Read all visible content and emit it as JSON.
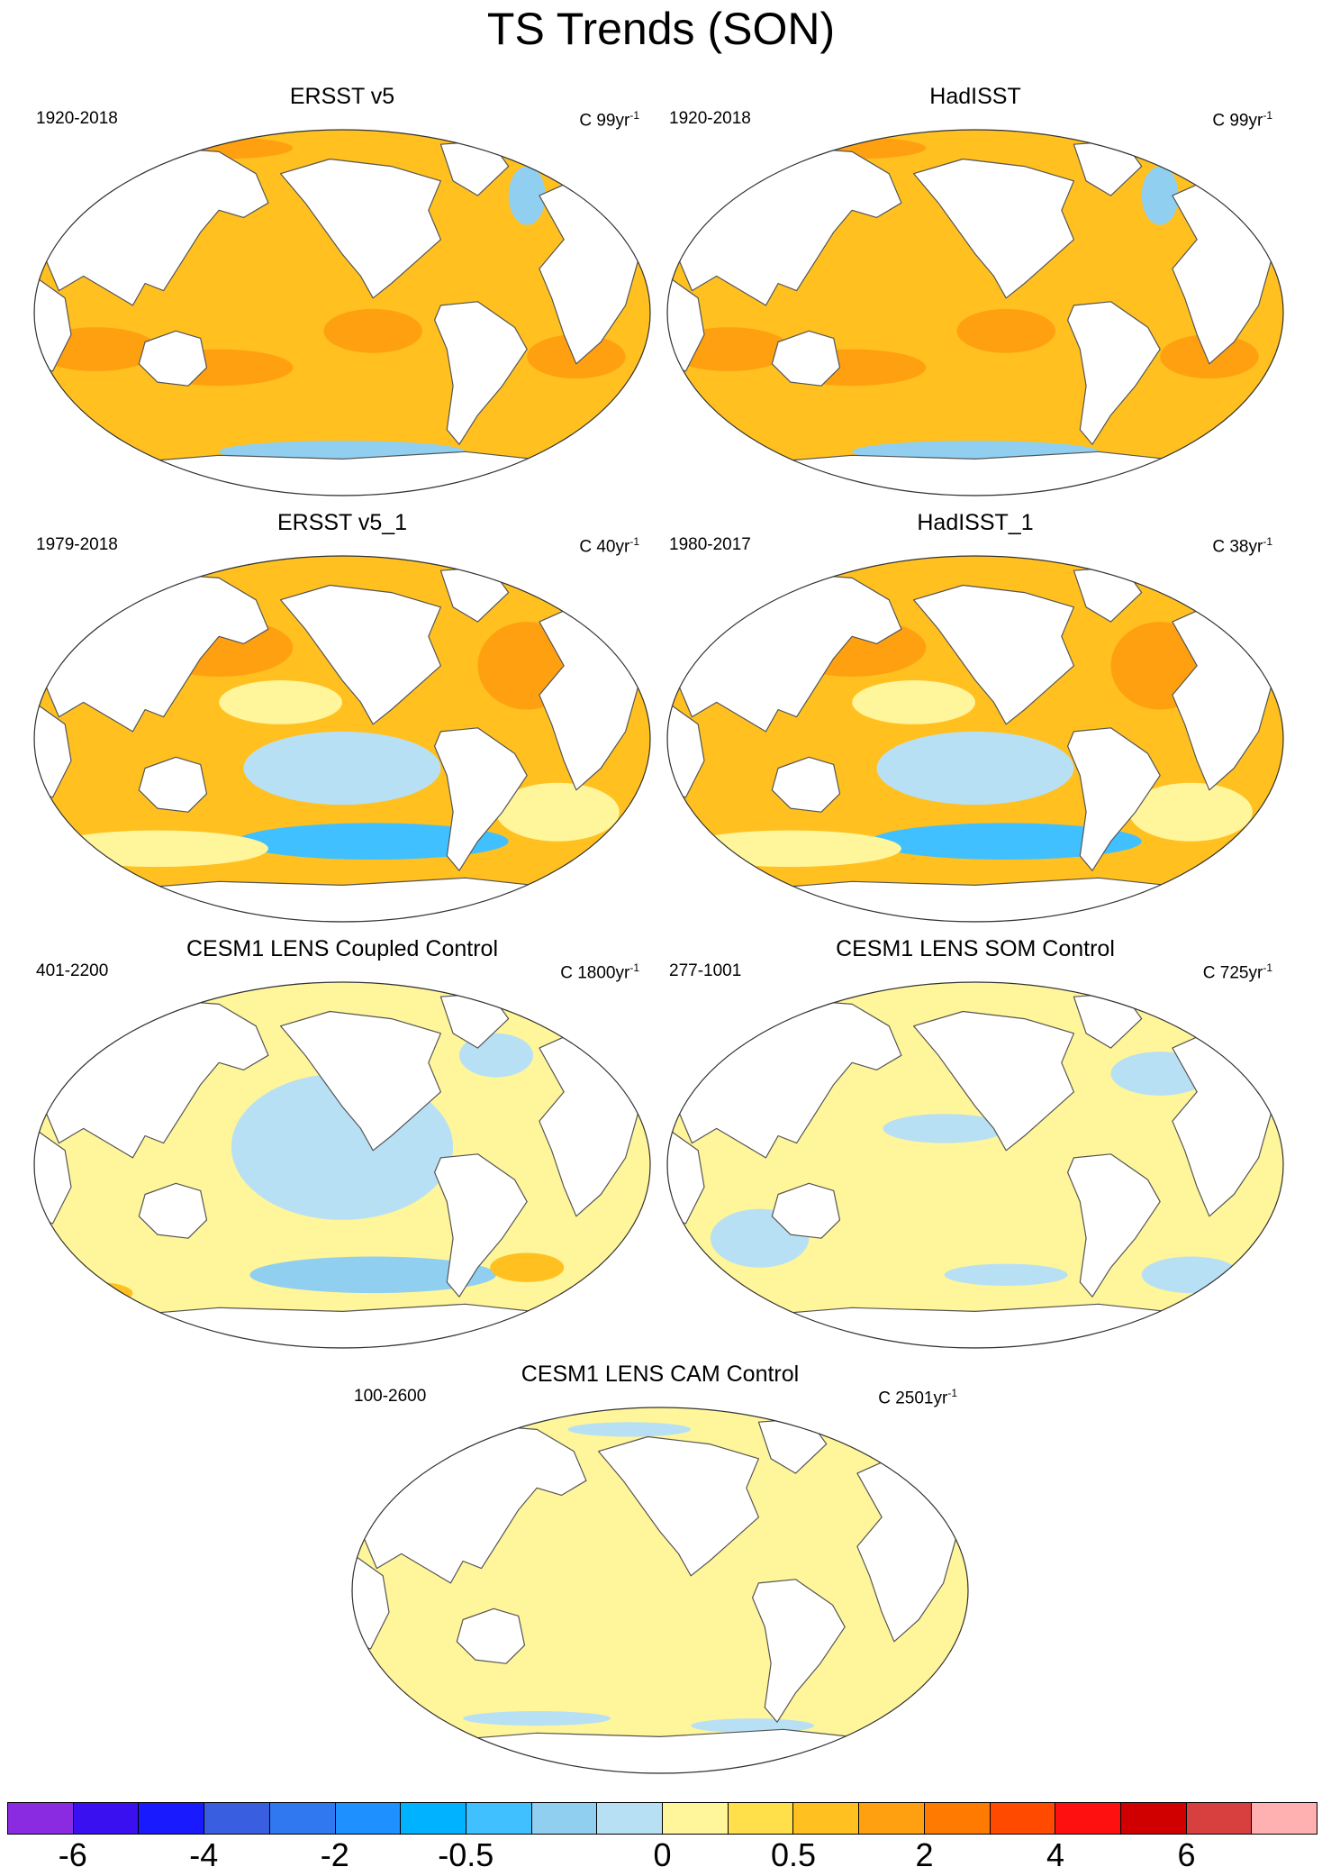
{
  "title": "TS Trends (SON)",
  "panels": [
    {
      "title": "ERSST v5",
      "period": "1920-2018",
      "units_main": "C 99yr",
      "units_exp": "-1",
      "pattern": "warm"
    },
    {
      "title": "HadISST",
      "period": "1920-2018",
      "units_main": "C 99yr",
      "units_exp": "-1",
      "pattern": "warm"
    },
    {
      "title": "ERSST v5_1",
      "period": "1979-2018",
      "units_main": "C 40yr",
      "units_exp": "-1",
      "pattern": "recent"
    },
    {
      "title": "HadISST_1",
      "period": "1980-2017",
      "units_main": "C 38yr",
      "units_exp": "-1",
      "pattern": "recent"
    },
    {
      "title": "CESM1 LENS Coupled Control",
      "period": "401-2200",
      "units_main": "C 1800yr",
      "units_exp": "-1",
      "pattern": "coupled"
    },
    {
      "title": "CESM1 LENS SOM Control",
      "period": "277-1001",
      "units_main": "C 725yr",
      "units_exp": "-1",
      "pattern": "som"
    },
    {
      "title": "CESM1 LENS CAM Control",
      "period": "100-2600",
      "units_main": "C 2501yr",
      "units_exp": "-1",
      "pattern": "cam"
    }
  ],
  "colorbar": {
    "colors": [
      "#8a2be2",
      "#3a10f0",
      "#1a1aff",
      "#3a5ee0",
      "#2f78f0",
      "#1e90ff",
      "#00b2ff",
      "#40c0ff",
      "#90cff0",
      "#b8e0f5",
      "#fff59a",
      "#ffe04a",
      "#ffc020",
      "#ffa010",
      "#ff7a00",
      "#ff4a00",
      "#ff1010",
      "#d00000",
      "#d84040",
      "#ffb0b0"
    ],
    "labels": [
      "-6",
      "-4",
      "-2",
      "-0.5",
      "0",
      "0.5",
      "2",
      "4",
      "6"
    ],
    "label_boundaries": [
      1,
      3,
      5,
      7,
      10,
      12,
      14,
      16,
      18
    ]
  },
  "palette": {
    "ocean_warm": "#ffc020",
    "ocean_hot": "#ffa010",
    "ocean_light": "#fff59a",
    "ocean_cool": "#b8e0f5",
    "ocean_cold": "#90cff0",
    "ocean_deep": "#40c0ff",
    "land": "#ffffff",
    "coast": "#555555"
  }
}
